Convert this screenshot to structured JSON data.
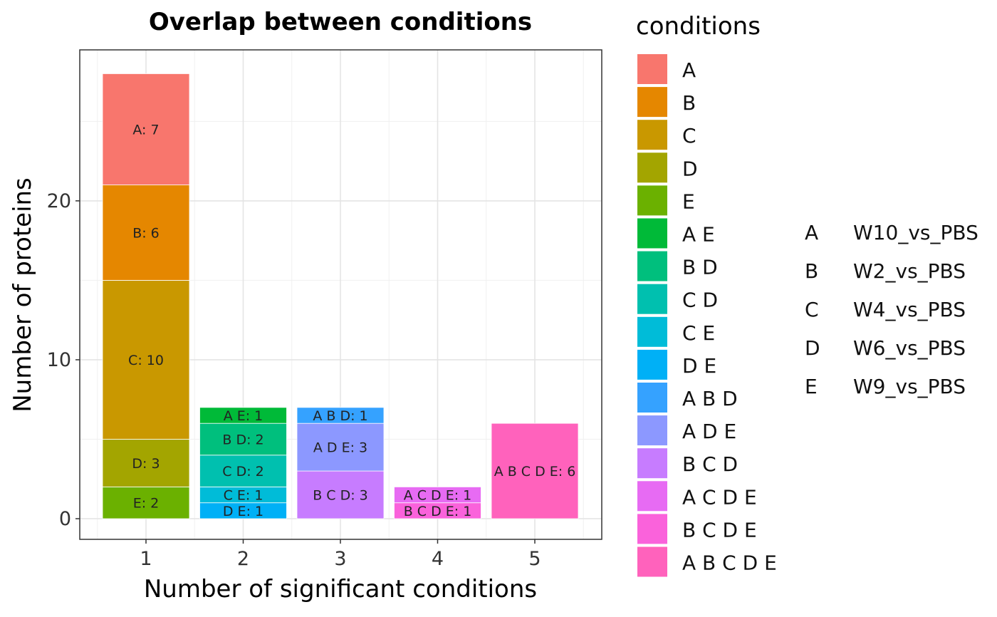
{
  "chart_data": {
    "type": "bar",
    "stacked": true,
    "title": "Overlap between conditions",
    "xlabel": "Number of significant conditions",
    "ylabel": "Number of proteins",
    "categories": [
      "1",
      "2",
      "3",
      "4",
      "5"
    ],
    "ylim": [
      -1.3,
      29.5
    ],
    "yticks": [
      0,
      10,
      20
    ],
    "grid": true,
    "legend_title": "conditions",
    "legend_position": "right",
    "series": [
      {
        "name": "A",
        "color": "#F8766D",
        "values": [
          7,
          0,
          0,
          0,
          0
        ]
      },
      {
        "name": "B",
        "color": "#E58700",
        "values": [
          6,
          0,
          0,
          0,
          0
        ]
      },
      {
        "name": "C",
        "color": "#C99800",
        "values": [
          10,
          0,
          0,
          0,
          0
        ]
      },
      {
        "name": "D",
        "color": "#A3A500",
        "values": [
          3,
          0,
          0,
          0,
          0
        ]
      },
      {
        "name": "E",
        "color": "#6BB100",
        "values": [
          2,
          0,
          0,
          0,
          0
        ]
      },
      {
        "name": "A E",
        "color": "#00BA38",
        "values": [
          0,
          1,
          0,
          0,
          0
        ]
      },
      {
        "name": "B D",
        "color": "#00BF7D",
        "values": [
          0,
          2,
          0,
          0,
          0
        ]
      },
      {
        "name": "C D",
        "color": "#00C0AF",
        "values": [
          0,
          2,
          0,
          0,
          0
        ]
      },
      {
        "name": "C E",
        "color": "#00BCD8",
        "values": [
          0,
          1,
          0,
          0,
          0
        ]
      },
      {
        "name": "D E",
        "color": "#00B0F6",
        "values": [
          0,
          1,
          0,
          0,
          0
        ]
      },
      {
        "name": "A B D",
        "color": "#35A2FF",
        "values": [
          0,
          0,
          1,
          0,
          0
        ]
      },
      {
        "name": "A D E",
        "color": "#8C98FF",
        "values": [
          0,
          0,
          3,
          0,
          0
        ]
      },
      {
        "name": "B C D",
        "color": "#C77CFF",
        "values": [
          0,
          0,
          3,
          0,
          0
        ]
      },
      {
        "name": "A C D E",
        "color": "#E76BF3",
        "values": [
          0,
          0,
          0,
          1,
          0
        ]
      },
      {
        "name": "B C D E",
        "color": "#FA62DB",
        "values": [
          0,
          0,
          0,
          1,
          0
        ]
      },
      {
        "name": "A B C D E",
        "color": "#FF62BC",
        "values": [
          0,
          0,
          0,
          0,
          6
        ]
      }
    ],
    "segments": [
      {
        "cat": 1,
        "stack": [
          "E",
          "D",
          "C",
          "B",
          "A"
        ],
        "labels": [
          "E: 2",
          "D: 3",
          "C: 10",
          "B: 6",
          "A: 7"
        ]
      },
      {
        "cat": 2,
        "stack": [
          "D E",
          "C E",
          "C D",
          "B D",
          "A E"
        ],
        "labels": [
          "D E: 1",
          "C E: 1",
          "C D: 2",
          "B D: 2",
          "A E: 1"
        ]
      },
      {
        "cat": 3,
        "stack": [
          "B C D",
          "A D E",
          "A B D"
        ],
        "labels": [
          "B C D: 3",
          "A D E: 3",
          "A B D: 1"
        ]
      },
      {
        "cat": 4,
        "stack": [
          "B C D E",
          "A C D E"
        ],
        "labels": [
          "B C D E: 1",
          "A C D E: 1"
        ]
      },
      {
        "cat": 5,
        "stack": [
          "A B C D E"
        ],
        "labels": [
          "A B C D E: 6"
        ]
      }
    ]
  },
  "condition_map": [
    {
      "letter": "A",
      "name": "W10_vs_PBS"
    },
    {
      "letter": "B",
      "name": "W2_vs_PBS"
    },
    {
      "letter": "C",
      "name": "W4_vs_PBS"
    },
    {
      "letter": "D",
      "name": "W6_vs_PBS"
    },
    {
      "letter": "E",
      "name": "W9_vs_PBS"
    }
  ]
}
